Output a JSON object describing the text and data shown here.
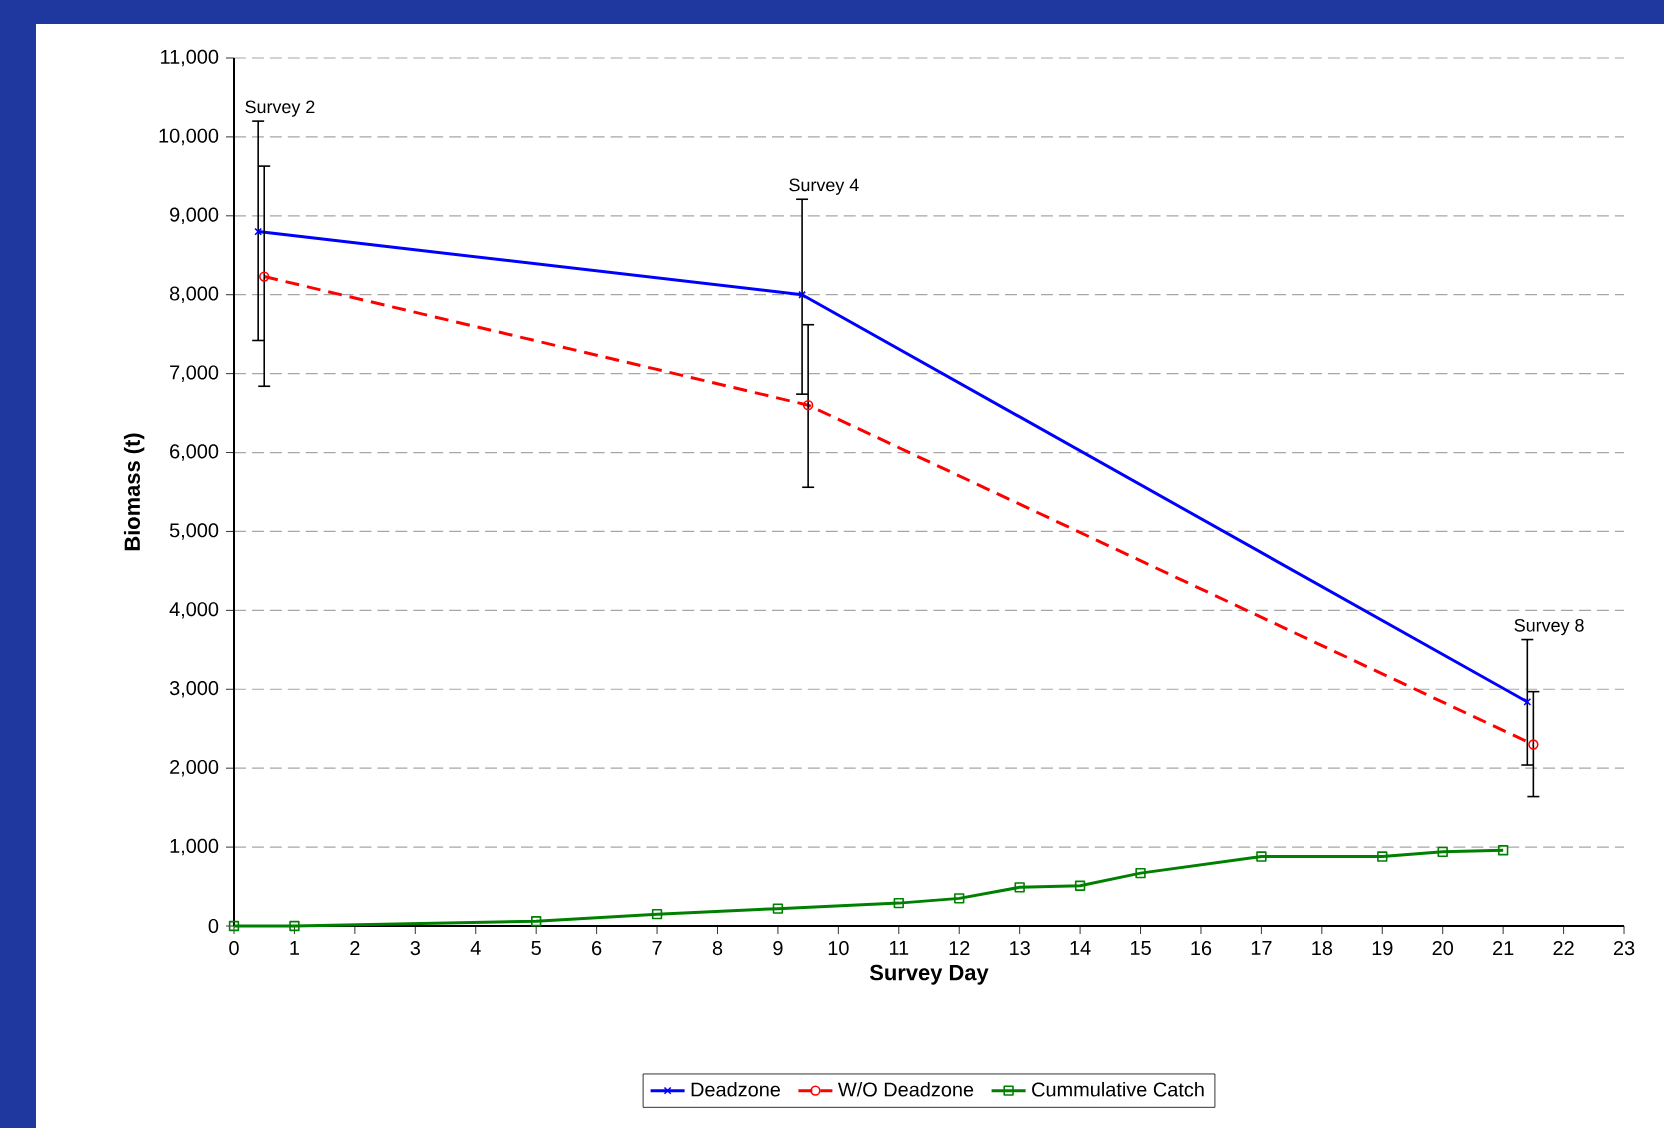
{
  "chart_data": {
    "type": "line",
    "xlabel": "Survey Day",
    "ylabel": "Biomass (t)",
    "xlim": [
      0,
      23
    ],
    "xticks": [
      0,
      1,
      2,
      3,
      4,
      5,
      6,
      7,
      8,
      9,
      10,
      11,
      12,
      13,
      14,
      15,
      16,
      17,
      18,
      19,
      20,
      21,
      22,
      23
    ],
    "ylim": [
      0,
      11000
    ],
    "yticks": [
      {
        "value": 0,
        "label": "0"
      },
      {
        "value": 1000,
        "label": "1,000"
      },
      {
        "value": 2000,
        "label": "2,000"
      },
      {
        "value": 3000,
        "label": "3,000"
      },
      {
        "value": 4000,
        "label": "4,000"
      },
      {
        "value": 5000,
        "label": "5,000"
      },
      {
        "value": 6000,
        "label": "6,000"
      },
      {
        "value": 7000,
        "label": "7,000"
      },
      {
        "value": 8000,
        "label": "8,000"
      },
      {
        "value": 9000,
        "label": "9,000"
      },
      {
        "value": 10000,
        "label": "10,000"
      },
      {
        "value": 11000,
        "label": "11,000"
      }
    ],
    "grid": "y",
    "legend": "bottom",
    "series": [
      {
        "name": "Deadzone",
        "color": "#0000ff",
        "marker": "cross",
        "line_style": "solid",
        "x": [
          0.4,
          9.4,
          21.4
        ],
        "values": [
          8800,
          8000,
          2840
        ],
        "errors": [
          [
            7420,
            10200
          ],
          [
            6740,
            9210
          ],
          [
            2040,
            3630
          ]
        ]
      },
      {
        "name": "W/O Deadzone",
        "color": "#ff0000",
        "marker": "circle",
        "line_style": "dashed",
        "x": [
          0.5,
          9.5,
          21.5
        ],
        "values": [
          8230,
          6600,
          2300
        ],
        "errors": [
          [
            6840,
            9630
          ],
          [
            5560,
            7620
          ],
          [
            1640,
            2970
          ]
        ]
      },
      {
        "name": "Cummulative Catch",
        "color": "#008000",
        "marker": "square",
        "line_style": "solid",
        "x": [
          0,
          1,
          5,
          7,
          9,
          11,
          12,
          13,
          14,
          15,
          17,
          19,
          20,
          21
        ],
        "values": [
          0,
          0,
          60,
          150,
          220,
          290,
          350,
          490,
          510,
          670,
          880,
          880,
          940,
          960
        ]
      }
    ],
    "annotations": [
      {
        "text": "Survey 2",
        "x": 0.4,
        "y": 10200
      },
      {
        "text": "Survey 4",
        "x": 9.4,
        "y": 9210
      },
      {
        "text": "Survey 8",
        "x": 21.4,
        "y": 3630
      }
    ]
  }
}
